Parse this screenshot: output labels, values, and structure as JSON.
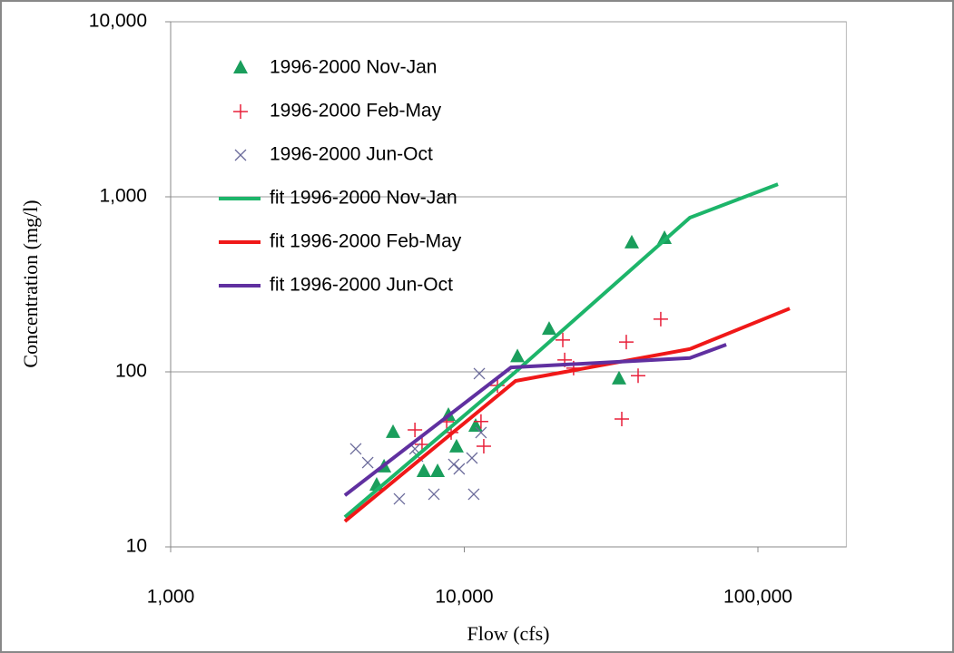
{
  "chart_data": {
    "type": "scatter",
    "x_label": "Flow (cfs)",
    "y_label": "Concentration (mg/l)",
    "log_x": true,
    "log_y": true,
    "grid": "y",
    "legend": "upper left",
    "xlim": [
      1000,
      200000
    ],
    "ylim": [
      10,
      10000
    ],
    "xticks": [
      {
        "value": 1000,
        "label": "1,000"
      },
      {
        "value": 10000,
        "label": "10,000"
      },
      {
        "value": 100000,
        "label": "100,000"
      }
    ],
    "yticks": [
      10,
      100,
      {
        "value": 1000,
        "label": "1,000"
      },
      {
        "value": 10000,
        "label": "10,000"
      }
    ],
    "series": [
      {
        "name": "1996-2000 Nov-Jan",
        "color": "#1a9e5c",
        "marker": "triangle",
        "x": [
          5030,
          5330,
          5720,
          7280,
          8110,
          8830,
          9410,
          10930,
          15170,
          19450,
          33650,
          37180,
          48060
        ],
        "values": [
          22.5,
          28.6,
          45,
          26.9,
          26.9,
          56.4,
          37.2,
          48.9,
          122,
          175,
          91,
          545,
          578
        ]
      },
      {
        "name": "1996-2000 Feb-May",
        "color": "#e8203a",
        "marker": "plus",
        "x": [
          6790,
          7180,
          8710,
          9020,
          11400,
          11650,
          12970,
          21650,
          21970,
          23560,
          34380,
          35620,
          39080,
          46670
        ],
        "values": [
          46.6,
          38.5,
          51.9,
          45,
          52,
          37.6,
          83.6,
          152,
          117,
          105,
          53.8,
          148,
          95,
          200
        ]
      },
      {
        "name": "1996-2000 Jun-Oct",
        "color": "#6a6a9a",
        "marker": "cross",
        "x": [
          4270,
          4690,
          6010,
          6790,
          6930,
          7880,
          9210,
          9610,
          10620,
          10770,
          11250,
          11400
        ],
        "values": [
          36.3,
          30.3,
          18.8,
          36.3,
          33,
          20,
          29.6,
          27.9,
          32.2,
          20,
          97.7,
          45
        ]
      },
      {
        "name": "fit 1996-2000 Nov-Jan",
        "color": "#1db56a",
        "marker": "line",
        "x": [
          3920,
          14950,
          58650,
          117000
        ],
        "values": [
          14.8,
          100,
          760,
          1180
        ]
      },
      {
        "name": "fit 1996-2000 Feb-May",
        "color": "#f01818",
        "marker": "line",
        "x": [
          3920,
          14950,
          58650,
          128300
        ],
        "values": [
          14,
          88.7,
          135,
          230
        ]
      },
      {
        "name": "fit 1996-2000 Jun-Oct",
        "color": "#6030a0",
        "marker": "line",
        "x": [
          3920,
          14430,
          58650,
          78000
        ],
        "values": [
          19.7,
          106,
          120,
          143
        ]
      }
    ]
  }
}
